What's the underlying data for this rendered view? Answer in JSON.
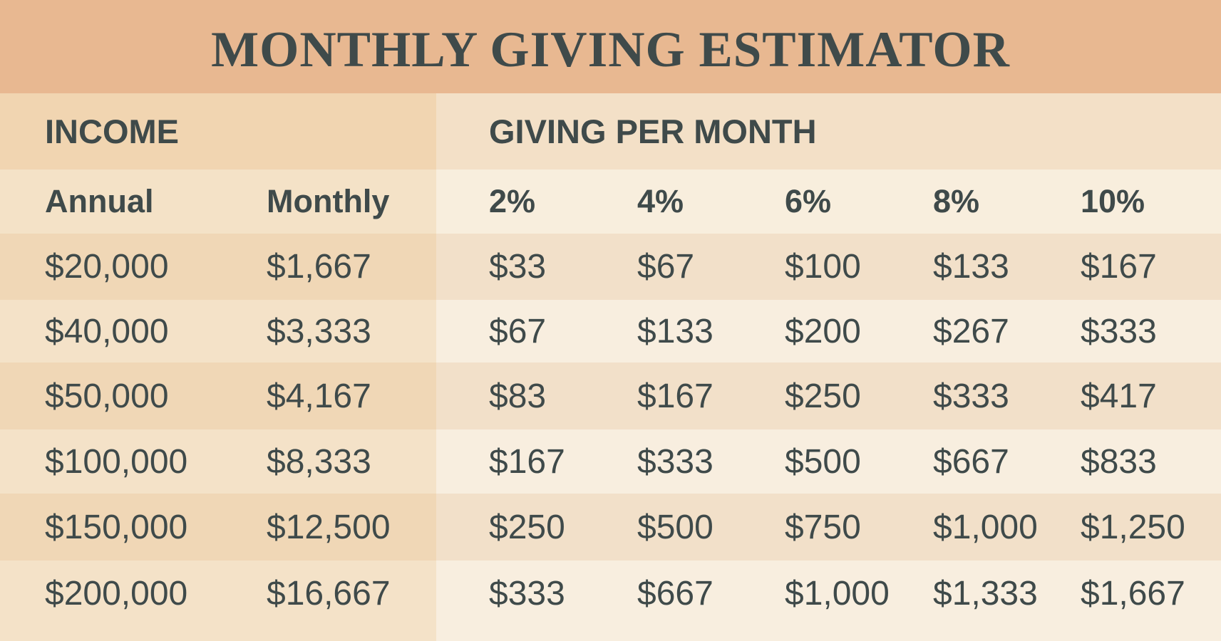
{
  "title": "MONTHLY GIVING ESTIMATOR",
  "sections": {
    "income": "INCOME",
    "giving": "GIVING PER MONTH"
  },
  "columns": [
    "Annual",
    "Monthly",
    "2%",
    "4%",
    "6%",
    "8%",
    "10%"
  ],
  "rows": [
    [
      "$20,000",
      "$1,667",
      "$33",
      "$67",
      "$100",
      "$133",
      "$167"
    ],
    [
      "$40,000",
      "$3,333",
      "$67",
      "$133",
      "$200",
      "$267",
      "$333"
    ],
    [
      "$50,000",
      "$4,167",
      "$83",
      "$167",
      "$250",
      "$333",
      "$417"
    ],
    [
      "$100,000",
      "$8,333",
      "$167",
      "$333",
      "$500",
      "$667",
      "$833"
    ],
    [
      "$150,000",
      "$12,500",
      "$250",
      "$500",
      "$750",
      "$1,000",
      "$1,250"
    ],
    [
      "$200,000",
      "$16,667",
      "$333",
      "$667",
      "$1,000",
      "$1,333",
      "$1,667"
    ]
  ],
  "colors": {
    "title_bg": "#e8b891",
    "text": "#3f4a4a"
  }
}
